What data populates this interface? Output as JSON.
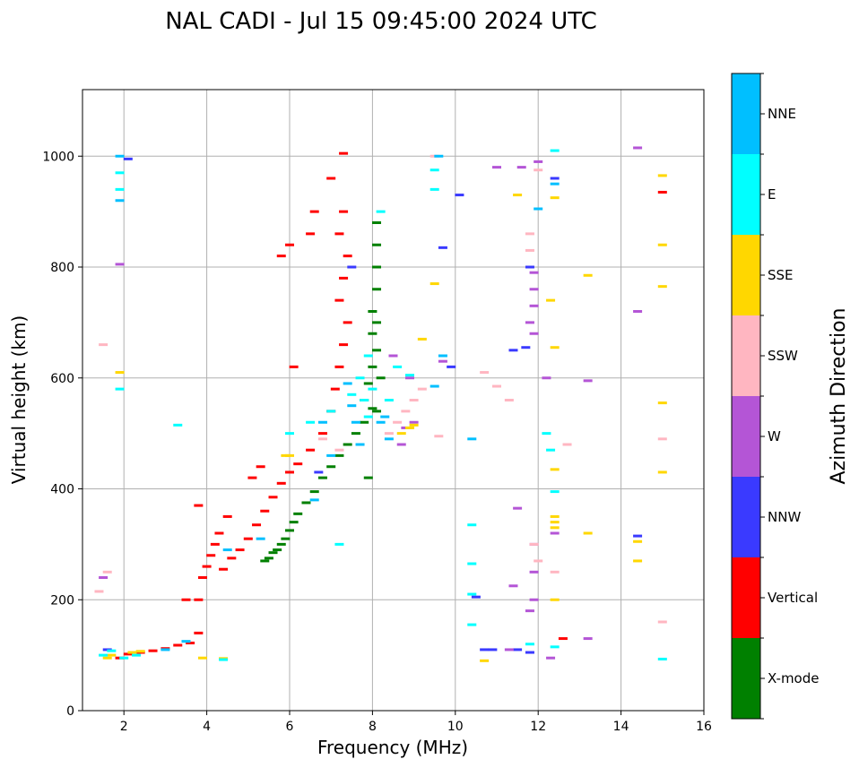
{
  "chart_data": {
    "type": "scatter",
    "title": "NAL CADI - Jul 15 09:45:00 2024 UTC",
    "xlabel": "Frequency (MHz)",
    "ylabel": "Virtual height (km)",
    "xlim": [
      1,
      16
    ],
    "ylim": [
      0,
      1120
    ],
    "xticks": [
      2,
      4,
      6,
      8,
      10,
      12,
      14,
      16
    ],
    "yticks": [
      0,
      200,
      400,
      600,
      800,
      1000
    ],
    "grid": true,
    "colorbar": {
      "label": "Azimuth Direction",
      "categories": [
        {
          "name": "X-mode",
          "color": "#008000"
        },
        {
          "name": "Vertical",
          "color": "#ff0000"
        },
        {
          "name": "NNW",
          "color": "#3a3aff"
        },
        {
          "name": "W",
          "color": "#b455d6"
        },
        {
          "name": "SSW",
          "color": "#ffb6c1"
        },
        {
          "name": "SSE",
          "color": "#ffd700"
        },
        {
          "name": "E",
          "color": "#00ffff"
        },
        {
          "name": "NNE",
          "color": "#00bfff"
        }
      ]
    },
    "series": [
      {
        "name": "X-mode",
        "points": [
          [
            5.4,
            270
          ],
          [
            5.5,
            275
          ],
          [
            5.6,
            285
          ],
          [
            5.7,
            290
          ],
          [
            5.8,
            300
          ],
          [
            5.9,
            310
          ],
          [
            6.0,
            325
          ],
          [
            6.1,
            340
          ],
          [
            6.2,
            355
          ],
          [
            6.4,
            375
          ],
          [
            6.6,
            395
          ],
          [
            6.8,
            420
          ],
          [
            7.0,
            440
          ],
          [
            7.2,
            460
          ],
          [
            7.4,
            480
          ],
          [
            7.6,
            500
          ],
          [
            7.8,
            520
          ],
          [
            8.0,
            545
          ],
          [
            7.8,
            560
          ],
          [
            7.9,
            590
          ],
          [
            8.0,
            620
          ],
          [
            8.1,
            650
          ],
          [
            8.0,
            680
          ],
          [
            8.1,
            700
          ],
          [
            8.0,
            720
          ],
          [
            8.1,
            760
          ],
          [
            8.1,
            800
          ],
          [
            8.1,
            840
          ],
          [
            8.1,
            880
          ],
          [
            7.9,
            420
          ],
          [
            8.2,
            600
          ],
          [
            8.1,
            540
          ]
        ]
      },
      {
        "name": "Vertical",
        "points": [
          [
            1.9,
            95
          ],
          [
            2.1,
            102
          ],
          [
            2.4,
            105
          ],
          [
            2.7,
            108
          ],
          [
            3.0,
            112
          ],
          [
            3.3,
            118
          ],
          [
            3.6,
            122
          ],
          [
            3.8,
            140
          ],
          [
            3.8,
            200
          ],
          [
            3.9,
            240
          ],
          [
            4.0,
            260
          ],
          [
            4.1,
            280
          ],
          [
            4.2,
            300
          ],
          [
            4.3,
            320
          ],
          [
            4.4,
            255
          ],
          [
            4.6,
            275
          ],
          [
            4.8,
            290
          ],
          [
            5.0,
            310
          ],
          [
            5.2,
            335
          ],
          [
            5.4,
            360
          ],
          [
            5.6,
            385
          ],
          [
            5.8,
            410
          ],
          [
            6.0,
            430
          ],
          [
            6.2,
            445
          ],
          [
            5.3,
            440
          ],
          [
            5.1,
            420
          ],
          [
            6.5,
            470
          ],
          [
            6.8,
            500
          ],
          [
            7.0,
            540
          ],
          [
            7.1,
            580
          ],
          [
            7.2,
            620
          ],
          [
            7.3,
            660
          ],
          [
            7.4,
            700
          ],
          [
            7.2,
            740
          ],
          [
            7.3,
            780
          ],
          [
            7.4,
            820
          ],
          [
            7.2,
            860
          ],
          [
            7.3,
            900
          ],
          [
            7.0,
            960
          ],
          [
            7.3,
            1005
          ],
          [
            6.6,
            900
          ],
          [
            6.5,
            860
          ],
          [
            6.0,
            840
          ],
          [
            5.8,
            820
          ],
          [
            3.8,
            370
          ],
          [
            3.5,
            200
          ],
          [
            4.5,
            350
          ],
          [
            15.0,
            935
          ],
          [
            12.6,
            130
          ],
          [
            6.1,
            620
          ]
        ]
      },
      {
        "name": "NNW",
        "points": [
          [
            1.6,
            110
          ],
          [
            2.1,
            995
          ],
          [
            9.9,
            620
          ],
          [
            10.1,
            930
          ],
          [
            9.7,
            835
          ],
          [
            11.8,
            800
          ],
          [
            11.7,
            655
          ],
          [
            11.4,
            650
          ],
          [
            10.9,
            110
          ],
          [
            10.7,
            110
          ],
          [
            10.5,
            205
          ],
          [
            11.5,
            110
          ],
          [
            11.8,
            105
          ],
          [
            12.4,
            960
          ],
          [
            14.4,
            315
          ],
          [
            6.7,
            430
          ],
          [
            7.5,
            800
          ]
        ]
      },
      {
        "name": "W",
        "points": [
          [
            1.5,
            240
          ],
          [
            1.9,
            805
          ],
          [
            8.5,
            640
          ],
          [
            8.9,
            600
          ],
          [
            9.7,
            630
          ],
          [
            11.9,
            790
          ],
          [
            11.9,
            760
          ],
          [
            11.9,
            730
          ],
          [
            11.8,
            700
          ],
          [
            11.9,
            680
          ],
          [
            12.0,
            990
          ],
          [
            11.6,
            980
          ],
          [
            11.0,
            980
          ],
          [
            12.4,
            320
          ],
          [
            11.9,
            300
          ],
          [
            11.9,
            250
          ],
          [
            11.9,
            200
          ],
          [
            11.8,
            180
          ],
          [
            11.3,
            110
          ],
          [
            12.3,
            95
          ],
          [
            13.2,
            130
          ],
          [
            14.4,
            720
          ],
          [
            14.4,
            1015
          ],
          [
            11.4,
            225
          ],
          [
            11.5,
            365
          ],
          [
            12.2,
            600
          ],
          [
            13.2,
            595
          ],
          [
            8.8,
            510
          ],
          [
            9.0,
            520
          ],
          [
            8.7,
            480
          ]
        ]
      },
      {
        "name": "SSW",
        "points": [
          [
            1.5,
            660
          ],
          [
            1.6,
            250
          ],
          [
            1.4,
            215
          ],
          [
            8.4,
            500
          ],
          [
            8.6,
            520
          ],
          [
            8.8,
            540
          ],
          [
            9.0,
            560
          ],
          [
            9.2,
            580
          ],
          [
            11.8,
            860
          ],
          [
            11.8,
            830
          ],
          [
            11.9,
            300
          ],
          [
            12.0,
            270
          ],
          [
            12.4,
            250
          ],
          [
            12.7,
            480
          ],
          [
            15.0,
            490
          ],
          [
            15.0,
            160
          ],
          [
            9.5,
            1000
          ],
          [
            10.7,
            610
          ],
          [
            11.3,
            560
          ],
          [
            12.0,
            975
          ],
          [
            6.8,
            490
          ],
          [
            7.2,
            470
          ],
          [
            9.6,
            495
          ],
          [
            11.0,
            585
          ]
        ]
      },
      {
        "name": "SSE",
        "points": [
          [
            1.6,
            95
          ],
          [
            1.7,
            100
          ],
          [
            2.2,
            105
          ],
          [
            2.4,
            107
          ],
          [
            3.9,
            95
          ],
          [
            4.4,
            94
          ],
          [
            8.7,
            500
          ],
          [
            8.9,
            510
          ],
          [
            9.0,
            515
          ],
          [
            9.2,
            670
          ],
          [
            12.4,
            330
          ],
          [
            12.4,
            340
          ],
          [
            12.4,
            350
          ],
          [
            12.4,
            200
          ],
          [
            12.4,
            435
          ],
          [
            12.4,
            655
          ],
          [
            12.3,
            740
          ],
          [
            13.2,
            785
          ],
          [
            13.2,
            320
          ],
          [
            14.4,
            305
          ],
          [
            14.4,
            270
          ],
          [
            15.0,
            965
          ],
          [
            15.0,
            840
          ],
          [
            15.0,
            765
          ],
          [
            15.0,
            555
          ],
          [
            15.0,
            430
          ],
          [
            10.7,
            90
          ],
          [
            12.4,
            925
          ],
          [
            11.5,
            930
          ],
          [
            9.5,
            770
          ],
          [
            1.9,
            610
          ],
          [
            5.9,
            460
          ],
          [
            6.0,
            460
          ]
        ]
      },
      {
        "name": "E",
        "points": [
          [
            1.7,
            108
          ],
          [
            2.0,
            95
          ],
          [
            1.9,
            970
          ],
          [
            1.9,
            940
          ],
          [
            4.4,
            92
          ],
          [
            7.7,
            600
          ],
          [
            7.8,
            560
          ],
          [
            7.9,
            530
          ],
          [
            8.2,
            900
          ],
          [
            8.6,
            620
          ],
          [
            8.9,
            605
          ],
          [
            9.5,
            975
          ],
          [
            9.5,
            940
          ],
          [
            10.4,
            335
          ],
          [
            10.4,
            265
          ],
          [
            10.4,
            155
          ],
          [
            10.4,
            210
          ],
          [
            12.4,
            1010
          ],
          [
            12.4,
            115
          ],
          [
            12.4,
            395
          ],
          [
            15.0,
            93
          ],
          [
            12.3,
            470
          ],
          [
            12.2,
            500
          ],
          [
            11.8,
            120
          ],
          [
            6.0,
            500
          ],
          [
            6.5,
            520
          ],
          [
            7.0,
            540
          ],
          [
            7.5,
            570
          ],
          [
            8.0,
            580
          ],
          [
            7.2,
            300
          ],
          [
            7.9,
            640
          ],
          [
            8.4,
            560
          ],
          [
            1.5,
            100
          ],
          [
            1.9,
            580
          ],
          [
            3.3,
            515
          ],
          [
            2.3,
            100
          ]
        ]
      },
      {
        "name": "NNE",
        "points": [
          [
            1.9,
            1000
          ],
          [
            1.9,
            920
          ],
          [
            7.5,
            550
          ],
          [
            7.6,
            520
          ],
          [
            7.7,
            480
          ],
          [
            8.3,
            530
          ],
          [
            8.4,
            490
          ],
          [
            9.5,
            585
          ],
          [
            9.6,
            1000
          ],
          [
            9.7,
            640
          ],
          [
            10.4,
            490
          ],
          [
            12.0,
            905
          ],
          [
            12.4,
            950
          ],
          [
            4.5,
            290
          ],
          [
            5.3,
            310
          ],
          [
            6.6,
            380
          ],
          [
            7.0,
            460
          ],
          [
            3.5,
            125
          ],
          [
            3.0,
            110
          ],
          [
            6.8,
            520
          ],
          [
            7.4,
            590
          ],
          [
            8.2,
            520
          ]
        ]
      }
    ]
  }
}
